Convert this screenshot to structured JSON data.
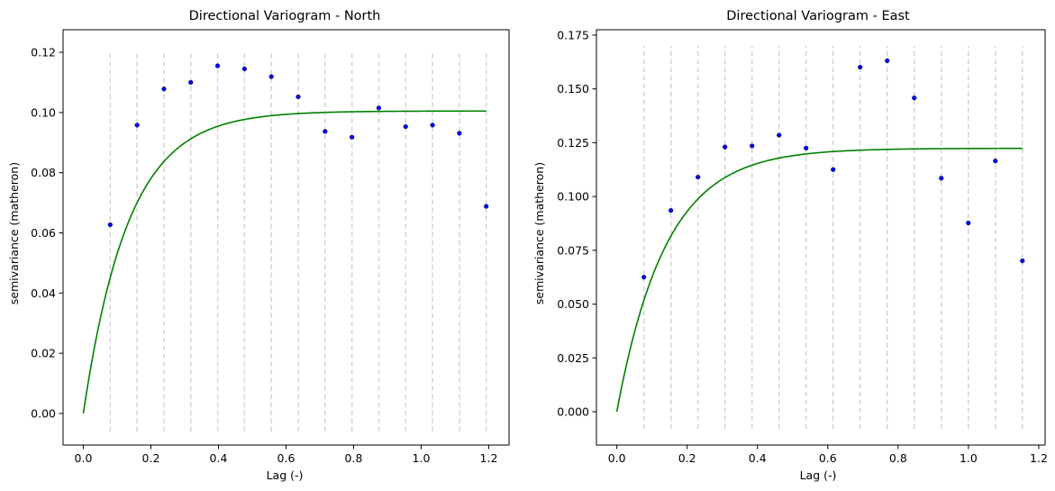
{
  "chart_data": [
    {
      "type": "scatter",
      "title": "Directional Variogram - North",
      "xlabel": "Lag (-)",
      "ylabel": "semivariance (matheron)",
      "xlim": [
        -0.06,
        1.26
      ],
      "ylim": [
        -0.0105,
        0.1275
      ],
      "xticks": [
        0.0,
        0.2,
        0.4,
        0.6,
        0.8,
        1.0,
        1.2
      ],
      "xtick_labels": [
        "0.0",
        "0.2",
        "0.4",
        "0.6",
        "0.8",
        "1.0",
        "1.2"
      ],
      "yticks": [
        0.0,
        0.02,
        0.04,
        0.06,
        0.08,
        0.1,
        0.12
      ],
      "ytick_labels": [
        "0.00",
        "0.02",
        "0.04",
        "0.06",
        "0.08",
        "0.10",
        "0.12"
      ],
      "bin_edges": [
        0.0795,
        0.159,
        0.2385,
        0.318,
        0.3975,
        0.477,
        0.5565,
        0.636,
        0.7155,
        0.795,
        0.8745,
        0.954,
        1.0335,
        1.113,
        1.1925
      ],
      "bin_line_range": [
        -0.006,
        0.12
      ],
      "points": {
        "x": [
          0.0795,
          0.159,
          0.2385,
          0.318,
          0.3975,
          0.477,
          0.5565,
          0.636,
          0.7155,
          0.795,
          0.8745,
          0.954,
          1.0335,
          1.113,
          1.1925
        ],
        "y": [
          0.0627,
          0.0958,
          0.1078,
          0.11,
          0.1155,
          0.1145,
          0.1119,
          0.1052,
          0.0937,
          0.0918,
          0.1015,
          0.0953,
          0.0958,
          0.0931,
          0.0688
        ]
      },
      "model": {
        "sill": 0.1005,
        "range": 0.4,
        "nugget": 0.0,
        "x_max": 1.1925
      },
      "colors": {
        "points": "#0000ff",
        "model": "#008000",
        "bins": "#d3d3d3"
      },
      "grid": false
    },
    {
      "type": "scatter",
      "title": "Directional Variogram - East",
      "xlabel": "Lag (-)",
      "ylabel": "semivariance (matheron)",
      "xlim": [
        -0.058,
        1.218
      ],
      "ylim": [
        -0.0155,
        0.1775
      ],
      "xticks": [
        0.0,
        0.2,
        0.4,
        0.6,
        0.8,
        1.0,
        1.2
      ],
      "xtick_labels": [
        "0.0",
        "0.2",
        "0.4",
        "0.6",
        "0.8",
        "1.0",
        "1.2"
      ],
      "yticks": [
        0.0,
        0.025,
        0.05,
        0.075,
        0.1,
        0.125,
        0.15,
        0.175
      ],
      "ytick_labels": [
        "0.000",
        "0.025",
        "0.050",
        "0.075",
        "0.100",
        "0.125",
        "0.150",
        "0.175"
      ],
      "bin_edges": [
        0.0769,
        0.1538,
        0.2307,
        0.3076,
        0.3845,
        0.4614,
        0.5383,
        0.6152,
        0.6921,
        0.769,
        0.8459,
        0.9228,
        0.9997,
        1.0766,
        1.1535
      ],
      "bin_line_range": [
        -0.008,
        0.17
      ],
      "points": {
        "x": [
          0.0769,
          0.1538,
          0.2307,
          0.3076,
          0.3845,
          0.4614,
          0.5383,
          0.6152,
          0.6921,
          0.769,
          0.8459,
          0.9228,
          0.9997,
          1.0766,
          1.1535
        ],
        "y": [
          0.0625,
          0.0935,
          0.109,
          0.123,
          0.1235,
          0.1285,
          0.1225,
          0.1125,
          0.1601,
          0.1631,
          0.1458,
          0.1085,
          0.0877,
          0.1165,
          0.0701
        ]
      },
      "model": {
        "sill": 0.1224,
        "range": 0.42,
        "nugget": 0.0,
        "x_max": 1.1535
      },
      "colors": {
        "points": "#0000ff",
        "model": "#008000",
        "bins": "#d3d3d3"
      },
      "grid": false
    }
  ]
}
